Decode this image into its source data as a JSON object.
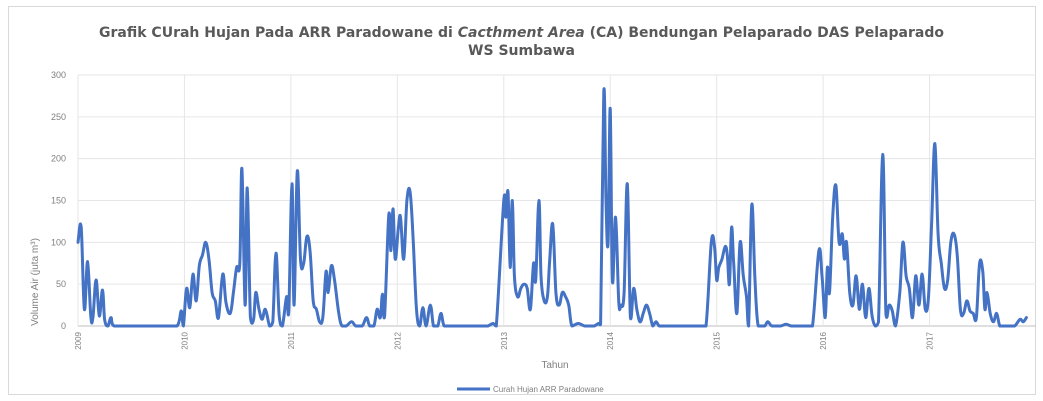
{
  "chart_data": {
    "type": "line",
    "title_parts": [
      "Grafik CUrah Hujan Pada ARR Paradowane di ",
      "Cacthment Area",
      " (CA) Bendungan Pelaparado DAS Pelaparado"
    ],
    "title_line2": "WS Sumbawa",
    "xlabel": "Tahun",
    "ylabel": "Volume Air (juta m³)",
    "ylim": [
      0,
      300
    ],
    "yticks": [
      0,
      50,
      100,
      150,
      200,
      250,
      300
    ],
    "xlim": [
      2009,
      2018
    ],
    "xticks": [
      {
        "value": 2009,
        "label": "2009"
      },
      {
        "value": 2010,
        "label": "2010"
      },
      {
        "value": 2011,
        "label": "2011"
      },
      {
        "value": 2012,
        "label": "2012"
      },
      {
        "value": 2013,
        "label": "2013"
      },
      {
        "value": 2014,
        "label": "2014"
      },
      {
        "value": 2015,
        "label": "2015"
      },
      {
        "value": 2016,
        "label": "2016"
      },
      {
        "value": 2017,
        "label": "2017"
      }
    ],
    "grid": true,
    "legend": "bottom",
    "color": "#4472c4",
    "series": [
      {
        "name": "Curah Hujan ARR Paradowane",
        "points": [
          [
            2009.0,
            100
          ],
          [
            2009.03,
            118
          ],
          [
            2009.06,
            20
          ],
          [
            2009.09,
            77
          ],
          [
            2009.12,
            12
          ],
          [
            2009.14,
            10
          ],
          [
            2009.17,
            55
          ],
          [
            2009.2,
            12
          ],
          [
            2009.23,
            43
          ],
          [
            2009.25,
            8
          ],
          [
            2009.28,
            0
          ],
          [
            2009.31,
            10
          ],
          [
            2009.34,
            0
          ],
          [
            2009.5,
            0
          ],
          [
            2009.8,
            0
          ],
          [
            2009.93,
            0
          ],
          [
            2009.97,
            18
          ],
          [
            2009.99,
            0
          ],
          [
            2010.02,
            45
          ],
          [
            2010.05,
            22
          ],
          [
            2010.08,
            62
          ],
          [
            2010.11,
            30
          ],
          [
            2010.14,
            72
          ],
          [
            2010.17,
            85
          ],
          [
            2010.2,
            100
          ],
          [
            2010.23,
            80
          ],
          [
            2010.26,
            40
          ],
          [
            2010.29,
            30
          ],
          [
            2010.32,
            10
          ],
          [
            2010.36,
            62
          ],
          [
            2010.39,
            28
          ],
          [
            2010.43,
            15
          ],
          [
            2010.46,
            40
          ],
          [
            2010.49,
            70
          ],
          [
            2010.52,
            75
          ],
          [
            2010.54,
            188
          ],
          [
            2010.57,
            25
          ],
          [
            2010.59,
            165
          ],
          [
            2010.62,
            10
          ],
          [
            2010.65,
            8
          ],
          [
            2010.67,
            40
          ],
          [
            2010.7,
            20
          ],
          [
            2010.73,
            8
          ],
          [
            2010.76,
            20
          ],
          [
            2010.8,
            0
          ],
          [
            2010.83,
            5
          ],
          [
            2010.86,
            87
          ],
          [
            2010.89,
            12
          ],
          [
            2010.92,
            0
          ],
          [
            2010.96,
            35
          ],
          [
            2010.98,
            18
          ],
          [
            2011.01,
            170
          ],
          [
            2011.03,
            25
          ],
          [
            2011.06,
            185
          ],
          [
            2011.09,
            80
          ],
          [
            2011.12,
            75
          ],
          [
            2011.15,
            107
          ],
          [
            2011.18,
            90
          ],
          [
            2011.21,
            30
          ],
          [
            2011.24,
            20
          ],
          [
            2011.27,
            5
          ],
          [
            2011.3,
            10
          ],
          [
            2011.33,
            65
          ],
          [
            2011.35,
            40
          ],
          [
            2011.38,
            72
          ],
          [
            2011.41,
            55
          ],
          [
            2011.45,
            15
          ],
          [
            2011.48,
            0
          ],
          [
            2011.52,
            0
          ],
          [
            2011.57,
            5
          ],
          [
            2011.61,
            0
          ],
          [
            2011.67,
            0
          ],
          [
            2011.71,
            10
          ],
          [
            2011.74,
            0
          ],
          [
            2011.78,
            0
          ],
          [
            2011.81,
            20
          ],
          [
            2011.84,
            10
          ],
          [
            2011.86,
            38
          ],
          [
            2011.88,
            12
          ],
          [
            2011.92,
            133
          ],
          [
            2011.94,
            90
          ],
          [
            2011.96,
            140
          ],
          [
            2011.98,
            80
          ],
          [
            2012.01,
            118
          ],
          [
            2012.03,
            130
          ],
          [
            2012.06,
            80
          ],
          [
            2012.09,
            150
          ],
          [
            2012.12,
            160
          ],
          [
            2012.15,
            100
          ],
          [
            2012.18,
            20
          ],
          [
            2012.21,
            0
          ],
          [
            2012.24,
            22
          ],
          [
            2012.27,
            0
          ],
          [
            2012.31,
            25
          ],
          [
            2012.34,
            0
          ],
          [
            2012.38,
            0
          ],
          [
            2012.41,
            15
          ],
          [
            2012.44,
            0
          ],
          [
            2012.5,
            0
          ],
          [
            2012.7,
            0
          ],
          [
            2012.8,
            0
          ],
          [
            2012.85,
            0
          ],
          [
            2012.9,
            3
          ],
          [
            2012.93,
            0
          ],
          [
            2013.0,
            150
          ],
          [
            2013.02,
            130
          ],
          [
            2013.04,
            160
          ],
          [
            2013.06,
            70
          ],
          [
            2013.08,
            150
          ],
          [
            2013.1,
            60
          ],
          [
            2013.13,
            35
          ],
          [
            2013.16,
            45
          ],
          [
            2013.19,
            50
          ],
          [
            2013.22,
            45
          ],
          [
            2013.25,
            20
          ],
          [
            2013.28,
            75
          ],
          [
            2013.3,
            55
          ],
          [
            2013.33,
            150
          ],
          [
            2013.35,
            60
          ],
          [
            2013.38,
            30
          ],
          [
            2013.41,
            35
          ],
          [
            2013.43,
            75
          ],
          [
            2013.46,
            122
          ],
          [
            2013.49,
            40
          ],
          [
            2013.52,
            25
          ],
          [
            2013.55,
            40
          ],
          [
            2013.58,
            35
          ],
          [
            2013.61,
            25
          ],
          [
            2013.64,
            0
          ],
          [
            2013.7,
            3
          ],
          [
            2013.76,
            0
          ],
          [
            2013.82,
            0
          ],
          [
            2013.85,
            0
          ],
          [
            2013.89,
            3
          ],
          [
            2013.91,
            2
          ],
          [
            2013.94,
            280
          ],
          [
            2013.96,
            150
          ],
          [
            2013.98,
            100
          ],
          [
            2014.0,
            260
          ],
          [
            2014.02,
            55
          ],
          [
            2014.05,
            130
          ],
          [
            2014.08,
            30
          ],
          [
            2014.1,
            25
          ],
          [
            2014.13,
            40
          ],
          [
            2014.16,
            170
          ],
          [
            2014.19,
            10
          ],
          [
            2014.22,
            45
          ],
          [
            2014.25,
            20
          ],
          [
            2014.28,
            5
          ],
          [
            2014.31,
            15
          ],
          [
            2014.34,
            25
          ],
          [
            2014.37,
            15
          ],
          [
            2014.4,
            0
          ],
          [
            2014.43,
            5
          ],
          [
            2014.46,
            0
          ],
          [
            2014.5,
            0
          ],
          [
            2014.55,
            0
          ],
          [
            2014.7,
            0
          ],
          [
            2014.85,
            0
          ],
          [
            2014.9,
            0
          ],
          [
            2014.95,
            100
          ],
          [
            2014.98,
            95
          ],
          [
            2015.0,
            55
          ],
          [
            2015.02,
            70
          ],
          [
            2015.05,
            80
          ],
          [
            2015.08,
            95
          ],
          [
            2015.1,
            85
          ],
          [
            2015.12,
            50
          ],
          [
            2015.14,
            118
          ],
          [
            2015.16,
            75
          ],
          [
            2015.19,
            15
          ],
          [
            2015.22,
            100
          ],
          [
            2015.25,
            60
          ],
          [
            2015.28,
            35
          ],
          [
            2015.3,
            0
          ],
          [
            2015.33,
            145
          ],
          [
            2015.36,
            55
          ],
          [
            2015.39,
            0
          ],
          [
            2015.45,
            0
          ],
          [
            2015.48,
            5
          ],
          [
            2015.52,
            0
          ],
          [
            2015.6,
            0
          ],
          [
            2015.65,
            2
          ],
          [
            2015.7,
            0
          ],
          [
            2015.75,
            0
          ],
          [
            2015.8,
            0
          ],
          [
            2015.85,
            0
          ],
          [
            2015.9,
            0
          ],
          [
            2015.96,
            90
          ],
          [
            2015.99,
            60
          ],
          [
            2016.02,
            10
          ],
          [
            2016.04,
            70
          ],
          [
            2016.06,
            40
          ],
          [
            2016.09,
            130
          ],
          [
            2016.12,
            168
          ],
          [
            2016.15,
            100
          ],
          [
            2016.18,
            110
          ],
          [
            2016.2,
            80
          ],
          [
            2016.22,
            100
          ],
          [
            2016.25,
            40
          ],
          [
            2016.28,
            25
          ],
          [
            2016.31,
            60
          ],
          [
            2016.34,
            20
          ],
          [
            2016.37,
            50
          ],
          [
            2016.4,
            10
          ],
          [
            2016.43,
            45
          ],
          [
            2016.46,
            12
          ],
          [
            2016.49,
            0
          ],
          [
            2016.52,
            5
          ],
          [
            2016.56,
            205
          ],
          [
            2016.59,
            15
          ],
          [
            2016.62,
            25
          ],
          [
            2016.65,
            18
          ],
          [
            2016.68,
            0
          ],
          [
            2016.72,
            40
          ],
          [
            2016.75,
            100
          ],
          [
            2016.78,
            60
          ],
          [
            2016.81,
            45
          ],
          [
            2016.84,
            10
          ],
          [
            2016.87,
            60
          ],
          [
            2016.9,
            25
          ],
          [
            2016.93,
            62
          ],
          [
            2016.96,
            20
          ],
          [
            2016.99,
            35
          ],
          [
            2017.02,
            125
          ],
          [
            2017.05,
            218
          ],
          [
            2017.08,
            110
          ],
          [
            2017.11,
            75
          ],
          [
            2017.14,
            45
          ],
          [
            2017.17,
            55
          ],
          [
            2017.2,
            100
          ],
          [
            2017.23,
            110
          ],
          [
            2017.26,
            85
          ],
          [
            2017.29,
            20
          ],
          [
            2017.32,
            15
          ],
          [
            2017.35,
            30
          ],
          [
            2017.38,
            18
          ],
          [
            2017.41,
            15
          ],
          [
            2017.44,
            10
          ],
          [
            2017.47,
            75
          ],
          [
            2017.5,
            65
          ],
          [
            2017.52,
            20
          ],
          [
            2017.54,
            40
          ],
          [
            2017.57,
            15
          ],
          [
            2017.6,
            5
          ],
          [
            2017.63,
            15
          ],
          [
            2017.66,
            0
          ],
          [
            2017.7,
            0
          ],
          [
            2017.75,
            0
          ],
          [
            2017.8,
            0
          ],
          [
            2017.85,
            8
          ],
          [
            2017.88,
            5
          ],
          [
            2017.91,
            10
          ]
        ]
      }
    ]
  }
}
